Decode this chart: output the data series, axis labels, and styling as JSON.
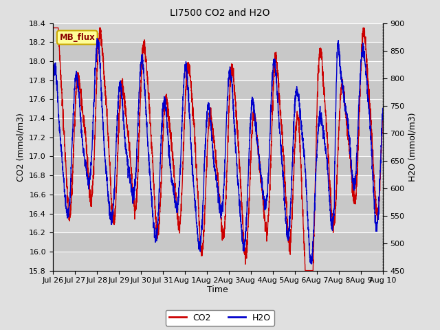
{
  "title": "LI7500 CO2 and H2O",
  "xlabel": "Time",
  "ylabel_left": "CO2 (mmol/m3)",
  "ylabel_right": "H2O (mmol/m3)",
  "co2_ylim": [
    15.8,
    18.4
  ],
  "h2o_ylim": [
    450,
    900
  ],
  "co2_yticks": [
    15.8,
    16.0,
    16.2,
    16.4,
    16.6,
    16.8,
    17.0,
    17.2,
    17.4,
    17.6,
    17.8,
    18.0,
    18.2,
    18.4
  ],
  "h2o_yticks": [
    450,
    500,
    550,
    600,
    650,
    700,
    750,
    800,
    850,
    900
  ],
  "xtick_labels": [
    "Jul 26",
    "Jul 27",
    "Jul 28",
    "Jul 29",
    "Jul 30",
    "Jul 31",
    "Aug 1",
    "Aug 2",
    "Aug 3",
    "Aug 4",
    "Aug 5",
    "Aug 6",
    "Aug 7",
    "Aug 8",
    "Aug 9",
    "Aug 10"
  ],
  "co2_color": "#cc0000",
  "h2o_color": "#0000cc",
  "background_color": "#e0e0e0",
  "band_colors": [
    "#d0d0d0",
    "#c0c0c0"
  ],
  "grid_color": "#ffffff",
  "annotation_text": "MB_flux",
  "annotation_bg": "#ffff99",
  "annotation_border": "#ccaa00",
  "legend_co2_label": "CO2",
  "legend_h2o_label": "H2O",
  "line_width": 1.0,
  "num_points": 3000
}
